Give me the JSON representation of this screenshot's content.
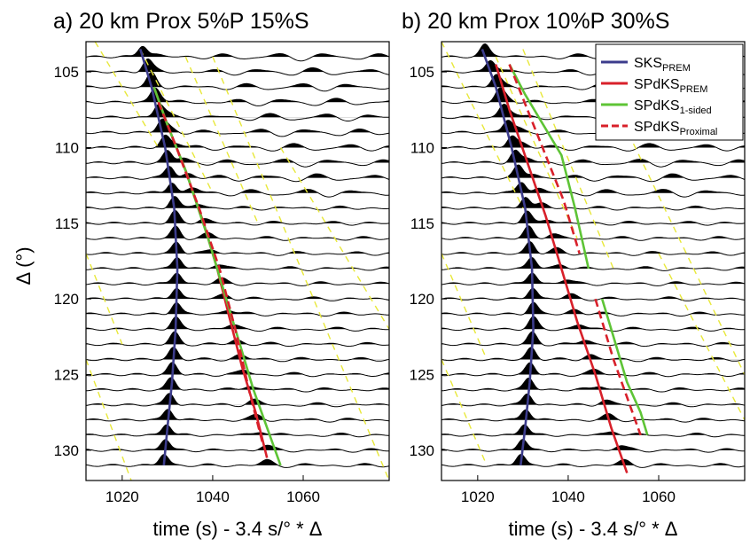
{
  "figure": {
    "ylabel": "Δ (°)",
    "xlabel": "time (s) -  3.4 s/° * Δ"
  },
  "legend": {
    "items": [
      {
        "name_main": "SKS",
        "name_sub": "PREM",
        "color": "#3c3c8c",
        "dash": false
      },
      {
        "name_main": "SPdKS",
        "name_sub": "PREM",
        "color": "#d8202a",
        "dash": false
      },
      {
        "name_main": "SPdKS",
        "name_sub": "1-sided",
        "color": "#5ec436",
        "dash": false
      },
      {
        "name_main": "SPdKS",
        "name_sub": "Proximal",
        "color": "#d8202a",
        "dash": true
      }
    ]
  },
  "chart_data": [
    {
      "type": "line",
      "panel": "a",
      "title": "a) 20 km Prox 5%P 15%S",
      "xlim": [
        1012,
        1079
      ],
      "ylim": [
        132,
        103
      ],
      "xticks": [
        1020,
        1040,
        1060
      ],
      "yticks": [
        105,
        110,
        115,
        120,
        125,
        130
      ],
      "grid": false,
      "distances_deg": [
        104,
        105,
        106,
        107,
        108,
        109,
        110,
        111,
        112,
        113,
        114,
        115,
        116,
        117,
        118,
        119,
        120,
        121,
        122,
        123,
        124,
        125,
        126,
        127,
        128,
        129,
        130,
        131
      ],
      "series": [
        {
          "name": "SKS_PREM",
          "color": "#3c3c8c",
          "x": [
            1024,
            1026.5,
            1029.5,
            1031.5,
            1032.2,
            1031.8,
            1031,
            1030,
            1029.2
          ],
          "y": [
            103.5,
            106,
            110,
            114,
            118,
            122,
            125.5,
            128.5,
            131
          ]
        },
        {
          "name": "SPdKS_PREM",
          "color": "#d8202a",
          "x": [
            1027,
            1030,
            1034,
            1038,
            1041,
            1043.5,
            1046.5,
            1049.5,
            1052
          ],
          "y": [
            106,
            108.5,
            111.5,
            115,
            118,
            121,
            124.5,
            127.5,
            130.5
          ]
        },
        {
          "name": "SPdKS_1-sided",
          "color": "#5ec436",
          "x": [
            1027,
            1030,
            1034,
            1039,
            1043,
            1046,
            1049,
            1052,
            1055
          ],
          "y": [
            106,
            108.5,
            111.5,
            116,
            120,
            123,
            126,
            128.5,
            131
          ]
        },
        {
          "name": "SPdKS_Proximal",
          "color": "#d8202a",
          "dash": true,
          "x": [
            1028,
            1032,
            1037,
            1041.5,
            1045,
            1048,
            1051
          ],
          "y": [
            107,
            110,
            114,
            118,
            122,
            126,
            129.5
          ]
        }
      ],
      "predicted_arrivals": {
        "color": "#e8e83a",
        "lines": [
          [
            1014,
            1028,
            103,
            110
          ],
          [
            1024,
            1040,
            103.5,
            113
          ],
          [
            1034,
            1050,
            104,
            115
          ],
          [
            1040,
            1079,
            104,
            132
          ],
          [
            1055,
            1079,
            110,
            122
          ],
          [
            1012,
            1020,
            117,
            123
          ],
          [
            1012,
            1022,
            124,
            132
          ]
        ]
      }
    },
    {
      "type": "line",
      "panel": "b",
      "title": "b) 20 km Prox 10%P 30%S",
      "xlim": [
        1012,
        1079
      ],
      "ylim": [
        132,
        103
      ],
      "xticks": [
        1020,
        1040,
        1060
      ],
      "yticks": [
        105,
        110,
        115,
        120,
        125,
        130
      ],
      "grid": false,
      "distances_deg": [
        104,
        105,
        106,
        107,
        108,
        109,
        110,
        111,
        112,
        113,
        114,
        115,
        116,
        117,
        118,
        119,
        120,
        121,
        122,
        123,
        124,
        125,
        126,
        127,
        128,
        129,
        130,
        131
      ],
      "series": [
        {
          "name": "SKS_PREM",
          "color": "#3c3c8c",
          "x": [
            1021,
            1024,
            1027.5,
            1030.5,
            1032,
            1032.3,
            1031.5,
            1030.5,
            1029.5
          ],
          "y": [
            103.5,
            106,
            110,
            114,
            118,
            122,
            125.5,
            128.5,
            131
          ]
        },
        {
          "name": "SPdKS_PREM",
          "color": "#d8202a",
          "x": [
            1024,
            1027,
            1031,
            1035,
            1038.5,
            1042,
            1046,
            1049.5,
            1053
          ],
          "y": [
            104.5,
            107.5,
            111,
            114.5,
            118,
            121.5,
            125,
            128.5,
            131.5
          ]
        },
        {
          "name": "SPdKS_1-sided",
          "color": "#5ec436",
          "x": [
            1027,
            1030.5,
            1034.5,
            1038.5,
            1041.5,
            1044.5
          ],
          "y": [
            104.5,
            106.5,
            108.5,
            110.5,
            114,
            118
          ]
        },
        {
          "name": "SPdKS_1-sided_far",
          "color": "#5ec436",
          "x": [
            1047.5,
            1050,
            1053,
            1056,
            1057.5
          ],
          "y": [
            120,
            122.5,
            125.5,
            127.5,
            129
          ]
        },
        {
          "name": "SPdKS_Proximal",
          "color": "#d8202a",
          "dash": true,
          "x": [
            1027,
            1031,
            1035,
            1039,
            1042.5
          ],
          "y": [
            104.5,
            107.5,
            110.5,
            113.5,
            117
          ]
        },
        {
          "name": "SPdKS_Proximal_far",
          "color": "#d8202a",
          "dash": true,
          "x": [
            1046,
            1048,
            1050,
            1053,
            1056
          ],
          "y": [
            120,
            122,
            124,
            126.5,
            129
          ]
        }
      ],
      "predicted_arrivals": {
        "color": "#e8e83a",
        "lines": [
          [
            1012,
            1030,
            103,
            114
          ],
          [
            1024,
            1042,
            104,
            116
          ],
          [
            1030,
            1050,
            103.5,
            118
          ],
          [
            1050,
            1079,
            107,
            125
          ],
          [
            1060,
            1079,
            117,
            128
          ],
          [
            1012,
            1022,
            117,
            124
          ],
          [
            1012,
            1022,
            124,
            131
          ]
        ]
      }
    }
  ]
}
